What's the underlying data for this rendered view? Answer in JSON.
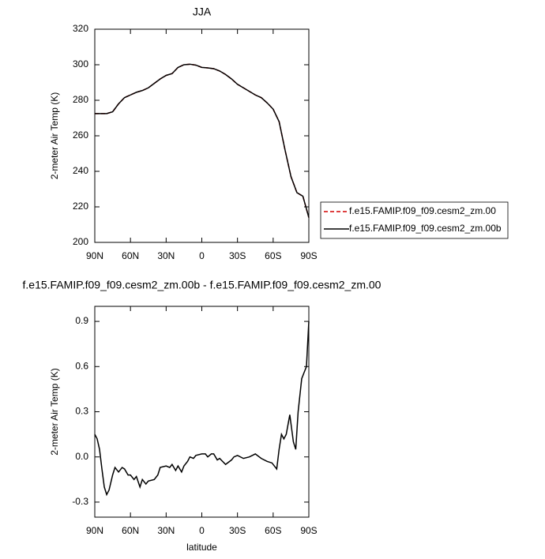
{
  "chart_data": [
    {
      "type": "line",
      "title": "JJA",
      "ylabel": "2-meter Air Temp (K)",
      "x": [
        90,
        85,
        80,
        75,
        70,
        65,
        60,
        55,
        50,
        45,
        40,
        35,
        30,
        25,
        20,
        15,
        10,
        5,
        0,
        -5,
        -10,
        -15,
        -20,
        -25,
        -30,
        -35,
        -40,
        -45,
        -50,
        -55,
        -60,
        -65,
        -70,
        -75,
        -80,
        -85,
        -90
      ],
      "series": [
        {
          "name": "f.e15.FAMIP.f09_f09.cesm2_zm.00",
          "color": "#d40000",
          "line_style": "dashed",
          "values": [
            272.5,
            272.5,
            272.5,
            273.5,
            278,
            281.5,
            283,
            284.5,
            285.5,
            287,
            289.5,
            292,
            294,
            295,
            298.5,
            300,
            300.3,
            299.8,
            298.5,
            298.2,
            297.8,
            296.5,
            294.5,
            292,
            289,
            287,
            285,
            283,
            281.5,
            278.5,
            275,
            268,
            252,
            237,
            228,
            226,
            214
          ]
        },
        {
          "name": "f.e15.FAMIP.f09_f09.cesm2_zm.00b",
          "color": "#000000",
          "line_style": "solid",
          "values": [
            272.5,
            272.5,
            272.5,
            273.5,
            278,
            281.5,
            283,
            284.5,
            285.5,
            287,
            289.5,
            292,
            294,
            295,
            298.5,
            300,
            300.3,
            299.8,
            298.5,
            298.2,
            297.8,
            296.5,
            294.5,
            292,
            289,
            287,
            285,
            283,
            281.5,
            278.5,
            275,
            268,
            252,
            237,
            228,
            226,
            214
          ]
        }
      ],
      "xlim": [
        90,
        -90
      ],
      "xticks": [
        {
          "value": 90,
          "label": "90N"
        },
        {
          "value": 60,
          "label": "60N"
        },
        {
          "value": 30,
          "label": "30N"
        },
        0,
        {
          "value": -30,
          "label": "30S"
        },
        {
          "value": -60,
          "label": "60S"
        },
        {
          "value": -90,
          "label": "90S"
        }
      ],
      "ylim": [
        200,
        320
      ],
      "yticks": [
        200,
        220,
        240,
        260,
        280,
        300,
        320
      ],
      "legend": "right"
    },
    {
      "type": "line",
      "title": "f.e15.FAMIP.f09_f09.cesm2_zm.00b - f.e15.FAMIP.f09_f09.cesm2_zm.00",
      "ylabel": "2-meter Air Temp (K)",
      "xlabel": "latitude",
      "color": "#000000",
      "x": [
        90,
        88,
        86,
        84,
        82,
        80,
        78,
        75,
        73,
        70,
        67,
        65,
        62,
        60,
        57,
        55,
        52,
        50,
        47,
        45,
        40,
        37,
        35,
        30,
        27,
        25,
        22,
        20,
        17,
        15,
        12,
        10,
        7,
        5,
        0,
        -3,
        -5,
        -8,
        -10,
        -13,
        -15,
        -20,
        -25,
        -27,
        -30,
        -35,
        -40,
        -45,
        -50,
        -55,
        -59,
        -61,
        -63,
        -65,
        -67,
        -69,
        -71,
        -74,
        -77,
        -79,
        -81,
        -84,
        -86,
        -88,
        -90
      ],
      "values": [
        0.15,
        0.12,
        0.05,
        -0.08,
        -0.2,
        -0.25,
        -0.22,
        -0.12,
        -0.07,
        -0.1,
        -0.07,
        -0.08,
        -0.12,
        -0.12,
        -0.15,
        -0.13,
        -0.2,
        -0.15,
        -0.18,
        -0.16,
        -0.15,
        -0.12,
        -0.07,
        -0.06,
        -0.07,
        -0.05,
        -0.09,
        -0.06,
        -0.1,
        -0.06,
        -0.03,
        0,
        -0.01,
        0.01,
        0.02,
        0.02,
        0,
        0.02,
        0.02,
        -0.02,
        -0.01,
        -0.05,
        -0.02,
        0,
        0.01,
        -0.01,
        0,
        0.02,
        -0.01,
        -0.03,
        -0.04,
        -0.06,
        -0.08,
        0.05,
        0.15,
        0.12,
        0.15,
        0.28,
        0.1,
        0.05,
        0.3,
        0.52,
        0.56,
        0.6,
        0.9
      ],
      "xlim": [
        90,
        -90
      ],
      "xticks": [
        {
          "value": 90,
          "label": "90N"
        },
        {
          "value": 60,
          "label": "60N"
        },
        {
          "value": 30,
          "label": "30N"
        },
        0,
        {
          "value": -30,
          "label": "30S"
        },
        {
          "value": -60,
          "label": "60S"
        },
        {
          "value": -90,
          "label": "90S"
        }
      ],
      "ylim": [
        -0.4,
        1.0
      ],
      "yticks": [
        -0.3,
        {
          "value": 0,
          "label": "0.0"
        },
        0.3,
        0.6,
        0.9
      ]
    }
  ]
}
